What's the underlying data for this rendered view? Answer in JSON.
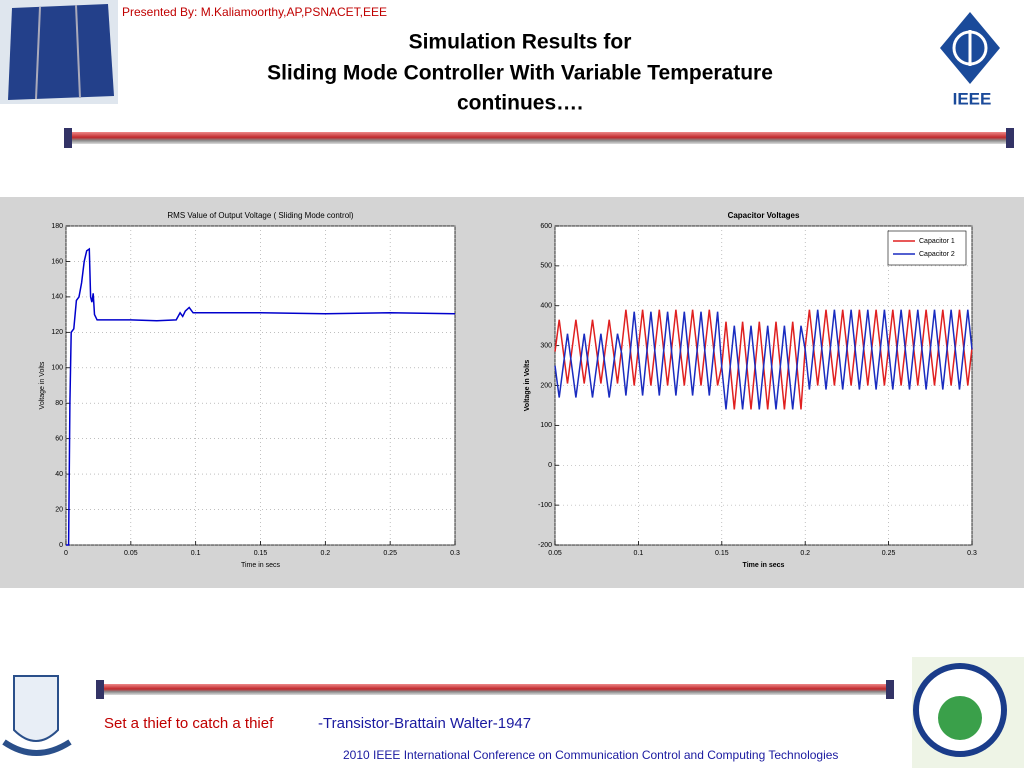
{
  "header": {
    "presenter": "Presented By: M.Kaliamoorthy,AP,PSNACET,EEE",
    "title_lines": [
      "Simulation Results for",
      "Sliding Mode Controller With Variable Temperature",
      "continues…."
    ],
    "logo": "IEEE"
  },
  "footer": {
    "quote": "Set a thief to catch a thief",
    "attribution": "-Transistor-Brattain Walter-1947",
    "conference": "2010 IEEE International Conference on Communication Control and Computing Technologies"
  },
  "chart_data": [
    {
      "type": "line",
      "title": "RMS Value of Output Voltage ( Sliding Mode control)",
      "xlabel": "Time in secs",
      "ylabel": "Voltage in Volts",
      "x": [
        0,
        0.002,
        0.003,
        0.004,
        0.006,
        0.008,
        0.01,
        0.012,
        0.014,
        0.016,
        0.018,
        0.019,
        0.02,
        0.021,
        0.022,
        0.024,
        0.05,
        0.07,
        0.085,
        0.088,
        0.09,
        0.092,
        0.095,
        0.098,
        0.1,
        0.15,
        0.2,
        0.25,
        0.3
      ],
      "values": [
        0,
        0,
        80,
        120,
        122,
        138,
        140,
        148,
        160,
        166,
        167,
        140,
        137,
        142,
        130,
        127,
        127,
        126.5,
        127,
        131,
        129,
        132,
        134,
        131,
        131,
        131,
        130.5,
        131,
        130.5
      ],
      "color": "#0000cc",
      "xlim": [
        0,
        0.3
      ],
      "xticks": [
        0,
        0.05,
        0.1,
        0.15,
        0.2,
        0.25,
        0.3
      ],
      "ylim": [
        0,
        180
      ],
      "yticks": [
        0,
        20,
        40,
        60,
        80,
        100,
        120,
        140,
        160,
        180
      ],
      "grid": true
    },
    {
      "type": "line",
      "title": "Capacitor Voltages",
      "xlabel": "Time in secs",
      "ylabel": "Voltage in Volts",
      "x": [
        0.05,
        0.0525,
        0.055,
        0.0575,
        0.06,
        0.0625,
        0.065,
        0.0675,
        0.07,
        0.0725,
        0.075,
        0.0775,
        0.08,
        0.0825,
        0.085,
        0.0875,
        0.09,
        0.0925,
        0.095,
        0.0975,
        0.1,
        0.1025,
        0.105,
        0.1075,
        0.11,
        0.1125,
        0.115,
        0.1175,
        0.12,
        0.1225,
        0.125,
        0.1275,
        0.13,
        0.1325,
        0.135,
        0.1375,
        0.14,
        0.1425,
        0.145,
        0.1475,
        0.15,
        0.1525,
        0.155,
        0.1575,
        0.16,
        0.1625,
        0.165,
        0.1675,
        0.17,
        0.1725,
        0.175,
        0.1775,
        0.18,
        0.1825,
        0.185,
        0.1875,
        0.19,
        0.1925,
        0.195,
        0.1975,
        0.2,
        0.2025,
        0.205,
        0.2075,
        0.21,
        0.2125,
        0.215,
        0.2175,
        0.22,
        0.2225,
        0.225,
        0.2275,
        0.23,
        0.2325,
        0.235,
        0.2375,
        0.24,
        0.2425,
        0.245,
        0.2475,
        0.25,
        0.2525,
        0.255,
        0.2575,
        0.26,
        0.2625,
        0.265,
        0.2675,
        0.27,
        0.2725,
        0.275,
        0.2775,
        0.28,
        0.2825,
        0.285,
        0.2875,
        0.29,
        0.2925,
        0.295,
        0.2975,
        0.3
      ],
      "series": [
        {
          "name": "Capacitor 1",
          "color": "#e02020",
          "values": [
            285,
            365,
            285,
            205,
            285,
            365,
            285,
            205,
            285,
            365,
            285,
            205,
            285,
            365,
            285,
            205,
            295,
            390,
            295,
            200,
            295,
            390,
            295,
            200,
            295,
            390,
            295,
            200,
            295,
            390,
            295,
            200,
            295,
            390,
            295,
            200,
            295,
            390,
            295,
            200,
            250,
            360,
            250,
            140,
            250,
            360,
            250,
            140,
            250,
            360,
            250,
            140,
            250,
            360,
            250,
            140,
            250,
            360,
            250,
            140,
            295,
            390,
            295,
            200,
            295,
            390,
            295,
            200,
            295,
            390,
            295,
            200,
            295,
            390,
            295,
            200,
            295,
            390,
            295,
            200,
            295,
            390,
            295,
            200,
            295,
            390,
            295,
            200,
            295,
            390,
            295,
            200,
            295,
            390,
            295,
            200,
            295,
            390,
            295,
            200,
            295
          ]
        },
        {
          "name": "Capacitor 2",
          "color": "#1a2cc0",
          "values": [
            250,
            170,
            250,
            330,
            250,
            170,
            250,
            330,
            250,
            170,
            250,
            330,
            250,
            170,
            250,
            330,
            280,
            175,
            280,
            385,
            280,
            175,
            280,
            385,
            280,
            175,
            280,
            385,
            280,
            175,
            280,
            385,
            280,
            175,
            280,
            385,
            280,
            175,
            280,
            385,
            245,
            140,
            245,
            350,
            245,
            140,
            245,
            350,
            245,
            140,
            245,
            350,
            245,
            140,
            245,
            350,
            245,
            140,
            245,
            350,
            290,
            190,
            290,
            390,
            290,
            190,
            290,
            390,
            290,
            190,
            290,
            390,
            290,
            190,
            290,
            390,
            290,
            190,
            290,
            390,
            290,
            190,
            290,
            390,
            290,
            190,
            290,
            390,
            290,
            190,
            290,
            390,
            290,
            190,
            290,
            390,
            290,
            190,
            290,
            390,
            290
          ]
        }
      ],
      "xlim": [
        0.05,
        0.3
      ],
      "xticks": [
        0.05,
        0.1,
        0.15,
        0.2,
        0.25,
        0.3
      ],
      "ylim": [
        -200,
        600
      ],
      "yticks": [
        -200,
        -100,
        0,
        100,
        200,
        300,
        400,
        500,
        600
      ],
      "grid": true,
      "legend": "upper right"
    }
  ]
}
